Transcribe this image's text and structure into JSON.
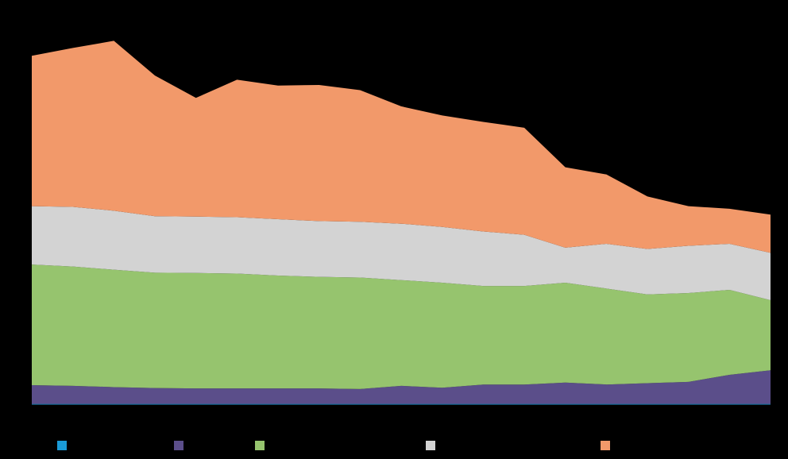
{
  "chart_data": {
    "type": "area",
    "stacked": true,
    "x": [
      1,
      2,
      3,
      4,
      5,
      6,
      7,
      8,
      9,
      10,
      11,
      12,
      13,
      14,
      15,
      16,
      17,
      18,
      19
    ],
    "series": [
      {
        "color": "#1a9ad6",
        "values": [
          0.2,
          0.2,
          0.2,
          0.2,
          0.2,
          0.2,
          0.2,
          0.2,
          0.2,
          0.2,
          0.2,
          0.2,
          0.2,
          0.2,
          0.2,
          0.2,
          0.2,
          0.2,
          0.2
        ]
      },
      {
        "color": "#5b4e8a",
        "values": [
          5.8,
          5.6,
          5.2,
          4.9,
          4.8,
          4.8,
          4.8,
          4.8,
          4.6,
          5.6,
          5.0,
          6.0,
          6.0,
          6.6,
          6.0,
          6.4,
          6.8,
          9.0,
          10.4
        ]
      },
      {
        "color": "#96c46e",
        "values": [
          37.2,
          36.8,
          36.2,
          35.6,
          35.6,
          35.4,
          34.8,
          34.4,
          34.4,
          32.6,
          32.4,
          30.4,
          30.4,
          30.8,
          29.6,
          27.4,
          27.4,
          26.2,
          21.6
        ]
      },
      {
        "color": "#d3d3d3",
        "values": [
          18.0,
          18.4,
          18.2,
          17.4,
          17.4,
          17.4,
          17.4,
          17.2,
          17.2,
          17.4,
          17.2,
          16.8,
          15.8,
          10.8,
          13.8,
          14.0,
          14.6,
          14.2,
          14.6
        ]
      },
      {
        "color": "#f2996a",
        "values": [
          46.4,
          49.0,
          52.4,
          43.4,
          36.6,
          42.4,
          41.2,
          42.0,
          40.6,
          36.2,
          34.4,
          33.8,
          33.0,
          24.8,
          21.4,
          16.2,
          12.2,
          10.8,
          11.8
        ]
      }
    ],
    "ylim": [
      0,
      115
    ],
    "legend_position": "bottom",
    "grid": false
  }
}
